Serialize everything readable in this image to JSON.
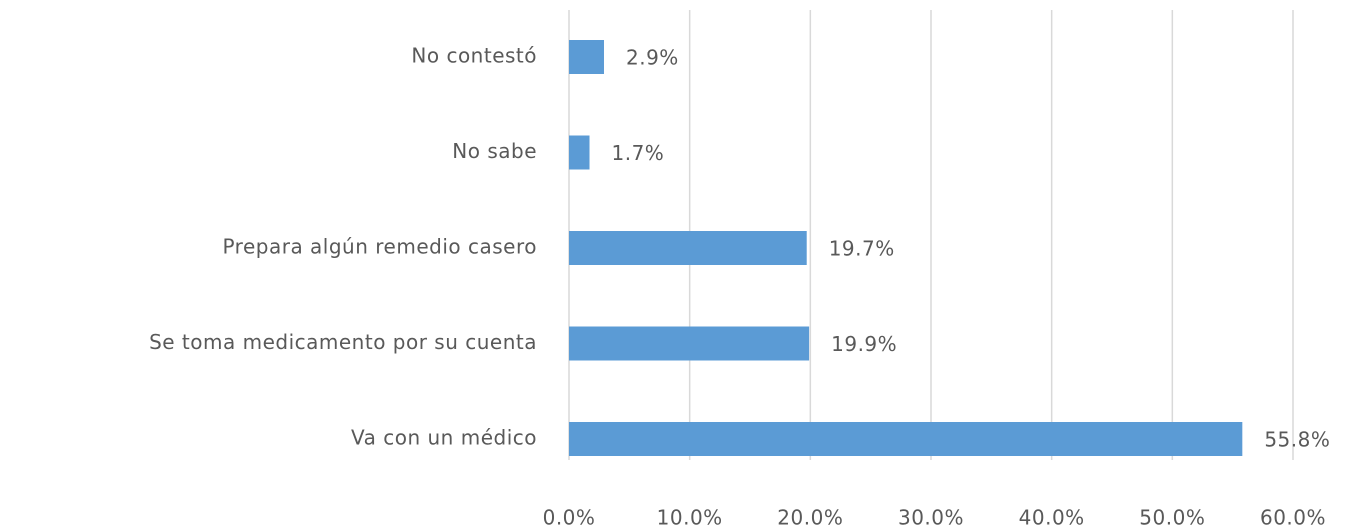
{
  "chart_data": {
    "type": "bar",
    "orientation": "horizontal",
    "categories": [
      "No contestó",
      "No sabe",
      "Prepara algún remedio casero",
      "Se toma medicamento por su cuenta",
      "Va con un médico"
    ],
    "values": [
      2.9,
      1.7,
      19.7,
      19.9,
      55.8
    ],
    "value_labels": [
      "2.9%",
      "1.7%",
      "19.7%",
      "19.9%",
      "55.8%"
    ],
    "color": "#5b9bd5",
    "xlim": [
      0,
      60
    ],
    "xticks": [
      {
        "value": 0,
        "label": "0.0%"
      },
      {
        "value": 10,
        "label": "10.0%"
      },
      {
        "value": 20,
        "label": "20.0%"
      },
      {
        "value": 30,
        "label": "30.0%"
      },
      {
        "value": 40,
        "label": "40.0%"
      },
      {
        "value": 50,
        "label": "50.0%"
      },
      {
        "value": 60,
        "label": "60.0%"
      }
    ],
    "grid": true
  }
}
